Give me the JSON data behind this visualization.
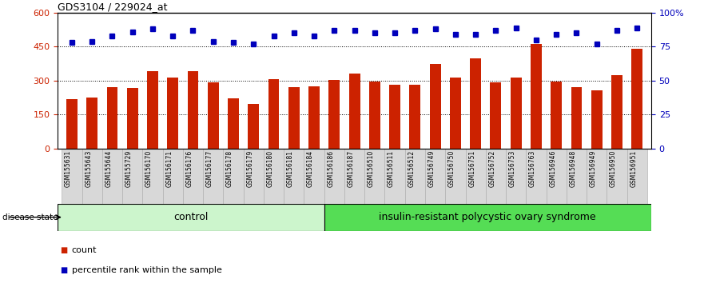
{
  "title": "GDS3104 / 229024_at",
  "samples": [
    "GSM155631",
    "GSM155643",
    "GSM155644",
    "GSM155729",
    "GSM156170",
    "GSM156171",
    "GSM156176",
    "GSM156177",
    "GSM156178",
    "GSM156179",
    "GSM156180",
    "GSM156181",
    "GSM156184",
    "GSM156186",
    "GSM156187",
    "GSM156510",
    "GSM156511",
    "GSM156512",
    "GSM156749",
    "GSM156750",
    "GSM156751",
    "GSM156752",
    "GSM156753",
    "GSM156763",
    "GSM156946",
    "GSM156948",
    "GSM156949",
    "GSM156950",
    "GSM156951"
  ],
  "bar_values": [
    220,
    225,
    272,
    268,
    342,
    312,
    342,
    292,
    222,
    196,
    306,
    272,
    276,
    302,
    332,
    296,
    283,
    283,
    374,
    312,
    398,
    292,
    312,
    462,
    296,
    272,
    256,
    326,
    442
  ],
  "percentile_values": [
    78,
    79,
    83,
    86,
    88,
    83,
    87,
    79,
    78,
    77,
    83,
    85,
    83,
    87,
    87,
    85,
    85,
    87,
    88,
    84,
    84,
    87,
    89,
    80,
    84,
    85,
    77,
    87,
    89
  ],
  "group_boundary": 13,
  "group1_label": "control",
  "group2_label": "insulin-resistant polycystic ovary syndrome",
  "group1_color": "#ccf5cc",
  "group2_color": "#55dd55",
  "bar_color": "#cc2200",
  "dot_color": "#0000bb",
  "ylim_left": [
    0,
    600
  ],
  "ylim_right": [
    0,
    100
  ],
  "yticks_left": [
    0,
    150,
    300,
    450,
    600
  ],
  "ytick_labels_left": [
    "0",
    "150",
    "300",
    "450",
    "600"
  ],
  "yticks_right": [
    0,
    25,
    50,
    75,
    100
  ],
  "ytick_labels_right": [
    "0",
    "25",
    "50",
    "75",
    "100%"
  ],
  "hgrid_values": [
    150,
    300,
    450
  ],
  "disease_state_label": "disease state",
  "legend_count_label": "count",
  "legend_pct_label": "percentile rank within the sample",
  "tick_bg_color": "#d8d8d8",
  "tick_edge_color": "#aaaaaa"
}
